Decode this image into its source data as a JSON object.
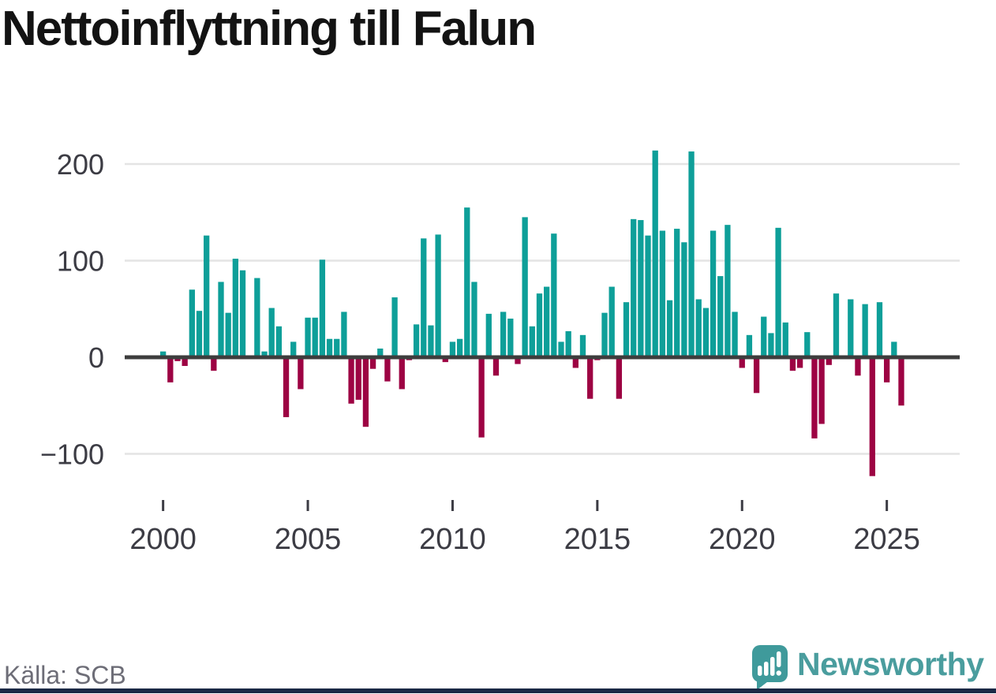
{
  "title": "Nettoinflyttning till Falun",
  "source": "Källa: SCB",
  "branding": {
    "name": "Newsworthy",
    "icon": "speech-bubble-bar-chart-icon"
  },
  "colors": {
    "positive": "#0e9f99",
    "negative": "#9d0343",
    "grid": "#e4e4e4",
    "zero_axis": "#3d3d3d",
    "tick_text": "#3c3c44",
    "title_text": "#131313",
    "source_text": "#6d6d77",
    "brand_teal": "#45999b",
    "footer_strip": "#1b2945"
  },
  "y_axis": {
    "ticks": [
      "200",
      "100",
      "0",
      "−100"
    ],
    "values": [
      200,
      100,
      0,
      -100
    ]
  },
  "x_axis": {
    "ticks": [
      "2000",
      "2005",
      "2010",
      "2015",
      "2020",
      "2025"
    ],
    "years": [
      2000,
      2005,
      2010,
      2015,
      2020,
      2025
    ]
  },
  "chart_data": {
    "type": "bar",
    "title": "Nettoinflyttning till Falun",
    "x_unit": "quarter",
    "start": "2000Q1",
    "end": "2025Q3",
    "xlabel": "",
    "ylabel": "",
    "ylim": [
      -140,
      230
    ],
    "grid": true,
    "legend": false,
    "positive_color": "#0e9f99",
    "negative_color": "#9d0343",
    "values": [
      6,
      -26,
      -4,
      -9,
      70,
      48,
      126,
      -14,
      78,
      46,
      102,
      90,
      0,
      82,
      6,
      51,
      32,
      -62,
      16,
      -33,
      41,
      41,
      101,
      19,
      19,
      47,
      -48,
      -44,
      -72,
      -12,
      9,
      -25,
      62,
      -33,
      -3,
      34,
      123,
      33,
      127,
      -5,
      16,
      19,
      155,
      78,
      -83,
      45,
      -19,
      47,
      40,
      -7,
      145,
      32,
      66,
      73,
      128,
      16,
      27,
      -11,
      23,
      -43,
      -3,
      46,
      73,
      -43,
      57,
      143,
      142,
      126,
      214,
      131,
      59,
      133,
      119,
      213,
      60,
      51,
      131,
      84,
      137,
      47,
      -11,
      23,
      -37,
      42,
      25,
      134,
      36,
      -14,
      -11,
      26,
      -84,
      -69,
      -8,
      66,
      2,
      60,
      -19,
      55,
      -123,
      57,
      -26,
      16,
      -50
    ]
  }
}
